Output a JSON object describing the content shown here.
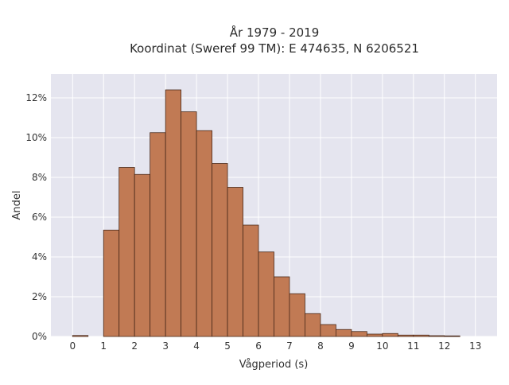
{
  "chart_data": {
    "type": "bar",
    "title": "År 1979 - 2019",
    "subtitle": "Koordinat (Sweref 99 TM): E 474635, N 6206521",
    "xlabel": "Vågperiod (s)",
    "ylabel": "Andel",
    "bin_width": 0.5,
    "bin_starts": [
      0,
      0.5,
      1,
      1.5,
      2,
      2.5,
      3,
      3.5,
      4,
      4.5,
      5,
      5.5,
      6,
      6.5,
      7,
      7.5,
      8,
      8.5,
      9,
      9.5,
      10,
      10.5,
      11,
      11.5,
      12,
      12.5
    ],
    "values": [
      0.05,
      0,
      5.35,
      8.5,
      8.15,
      10.25,
      12.4,
      11.3,
      10.35,
      8.7,
      7.5,
      5.6,
      4.25,
      3.0,
      2.15,
      1.15,
      0.6,
      0.35,
      0.25,
      0.12,
      0.15,
      0.07,
      0.07,
      0.04,
      0.03,
      0
    ],
    "xlim": [
      -0.7,
      13.7
    ],
    "ylim": [
      0,
      13.2
    ],
    "xticks": [
      0,
      1,
      2,
      3,
      4,
      5,
      6,
      7,
      8,
      9,
      10,
      11,
      12,
      13
    ],
    "xtick_labels": [
      "0",
      "1",
      "2",
      "3",
      "4",
      "5",
      "6",
      "7",
      "8",
      "9",
      "10",
      "11",
      "12",
      "13"
    ],
    "yticks": [
      0,
      2,
      4,
      6,
      8,
      10,
      12
    ],
    "ytick_labels": [
      "0%",
      "2%",
      "4%",
      "6%",
      "8%",
      "10%",
      "12%"
    ],
    "grid": true,
    "colors": {
      "bar_fill": "#c17a54",
      "bar_edge": "#4a2a1a",
      "plot_bg": "#e5e5ef",
      "grid": "#ffffff"
    }
  }
}
